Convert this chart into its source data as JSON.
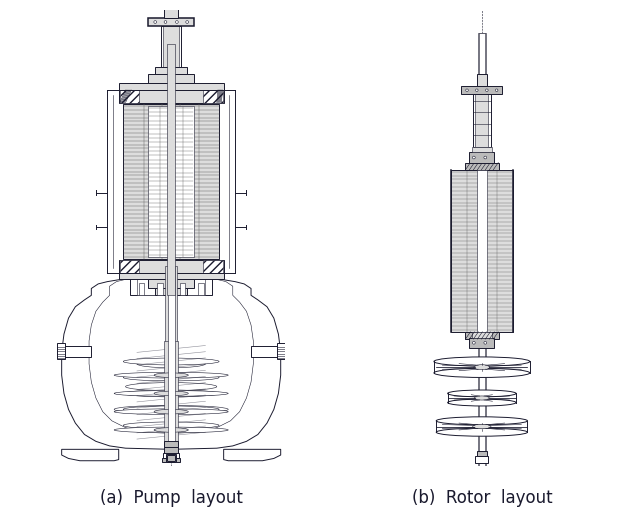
{
  "label_a": "(a)  Pump  layout",
  "label_b": "(b)  Rotor  layout",
  "bg_color": "#ffffff",
  "lc": "#1a1a2e",
  "gray": "#bbbbbb",
  "lgray": "#dddddd",
  "dgray": "#666666",
  "font_size_label": 12,
  "figsize": [
    6.34,
    5.07
  ],
  "dpi": 100
}
